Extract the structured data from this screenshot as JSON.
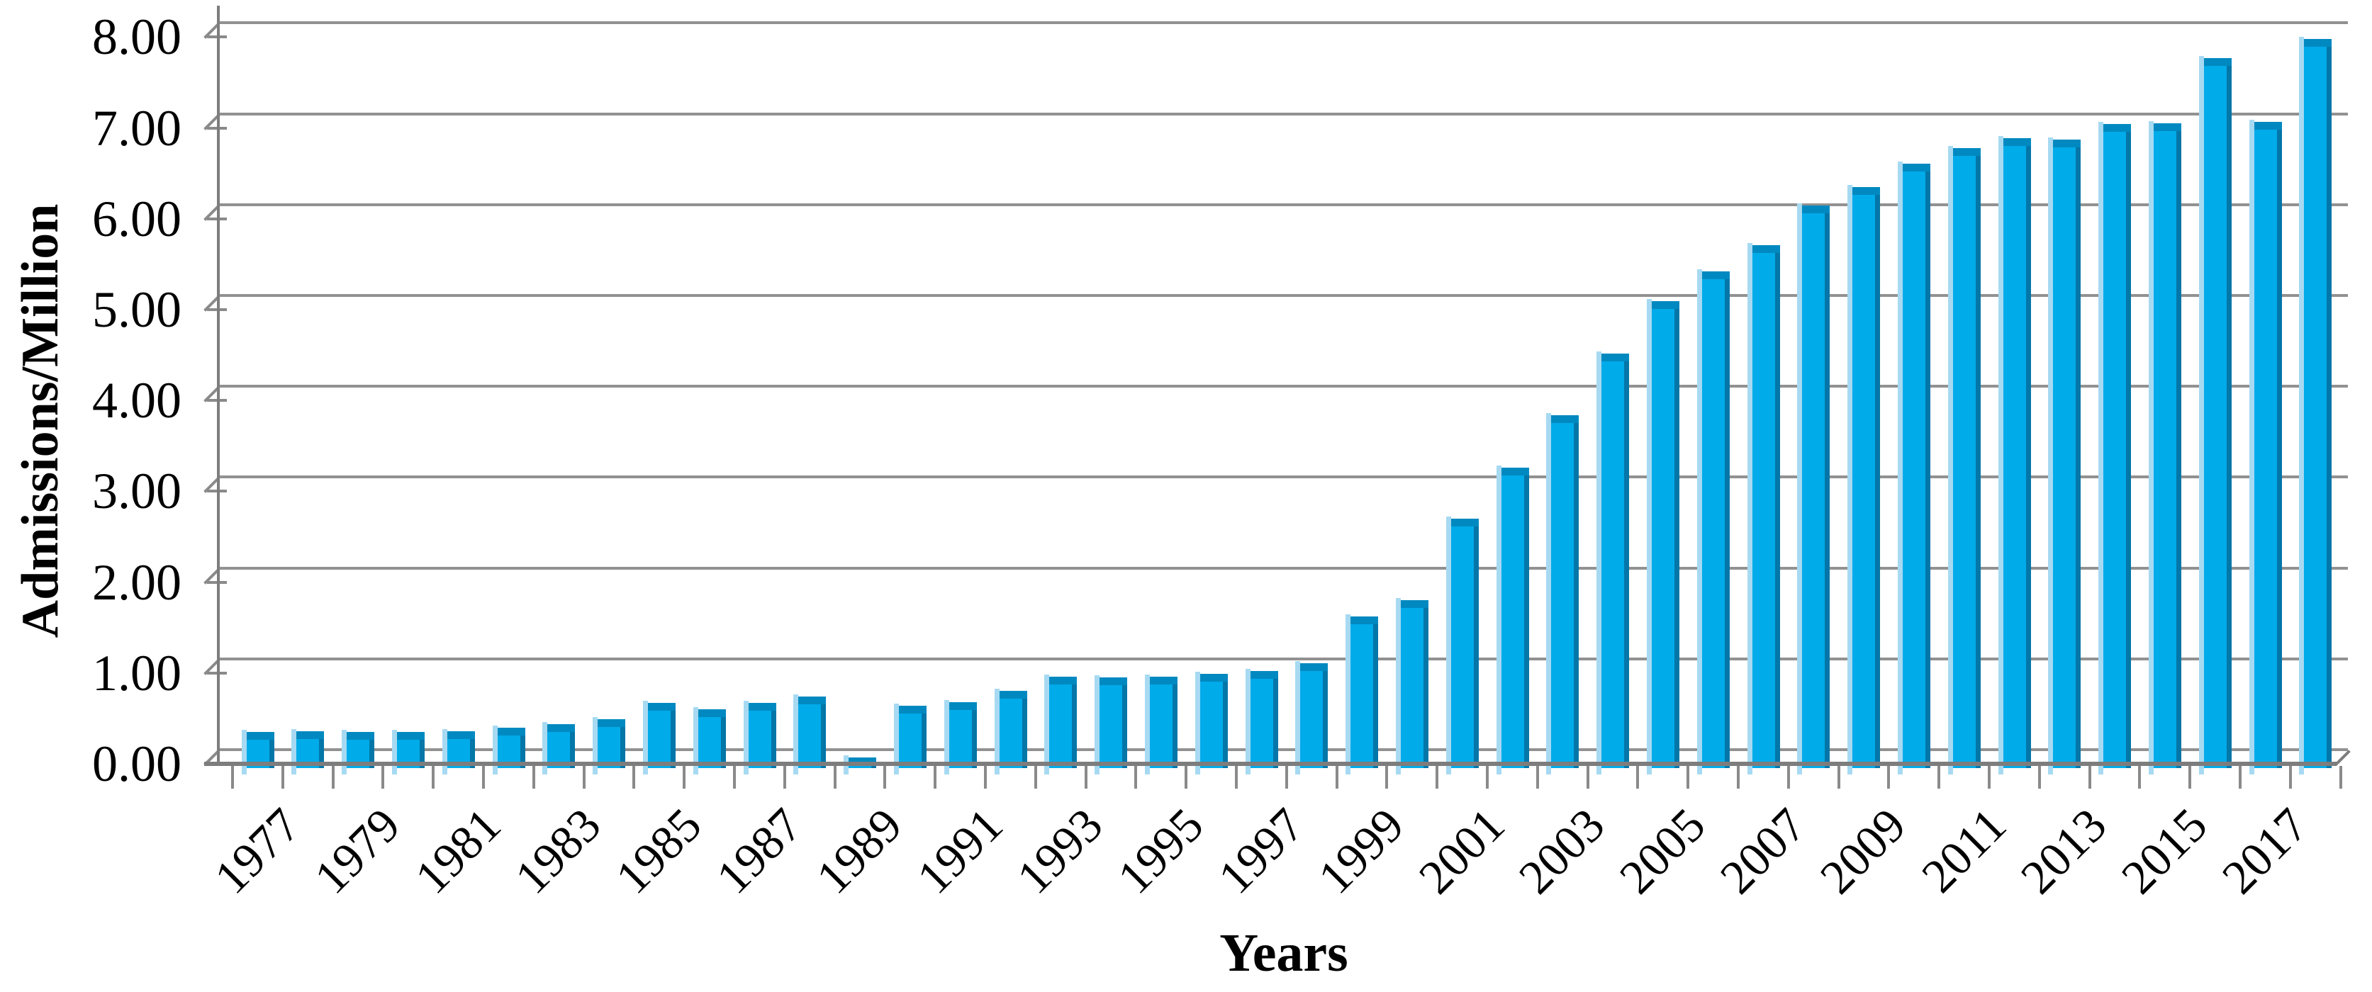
{
  "chart_data": {
    "type": "bar",
    "title": "",
    "xlabel": "Years",
    "ylabel": "Admissions/Million",
    "categories": [
      "1977",
      "1978",
      "1979",
      "1980",
      "1981",
      "1982",
      "1983",
      "1984",
      "1985",
      "1986",
      "1987",
      "1988",
      "1989",
      "1990",
      "1991",
      "1992",
      "1993",
      "1994",
      "1995",
      "1996",
      "1997",
      "1998",
      "1999",
      "2000",
      "2001",
      "2002",
      "2003",
      "2004",
      "2005",
      "2006",
      "2007",
      "2008",
      "2009",
      "2010",
      "2011",
      "2012",
      "2013",
      "2014",
      "2015",
      "2016",
      "2017",
      "2018"
    ],
    "values": [
      0.35,
      0.36,
      0.35,
      0.35,
      0.36,
      0.4,
      0.44,
      0.49,
      0.67,
      0.6,
      0.67,
      0.74,
      0.07,
      0.64,
      0.68,
      0.8,
      0.96,
      0.95,
      0.96,
      0.99,
      1.02,
      1.11,
      1.62,
      1.8,
      2.7,
      3.26,
      3.84,
      4.52,
      5.09,
      5.42,
      5.71,
      6.15,
      6.35,
      6.61,
      6.78,
      6.89,
      6.87,
      7.04,
      7.05,
      7.77,
      7.07,
      7.98
    ],
    "ytick_labels": [
      "0.00",
      "1.00",
      "2.00",
      "3.00",
      "4.00",
      "5.00",
      "6.00",
      "7.00",
      "8.00"
    ],
    "ylim": [
      0,
      8
    ],
    "x_label_interval": 2,
    "grid": true,
    "legend": "none",
    "style": "3d-effect-columns",
    "colors": {
      "bar_face": "#00abea",
      "bar_cap": "#0089c0",
      "bar_right_edge": "#0476a8",
      "bar_left_glow": "#a7daf2",
      "gridline": "#919191",
      "axis": "#7d7d7d",
      "tick": "#8a8a8a",
      "text": "#000000",
      "background": "#ffffff"
    }
  }
}
